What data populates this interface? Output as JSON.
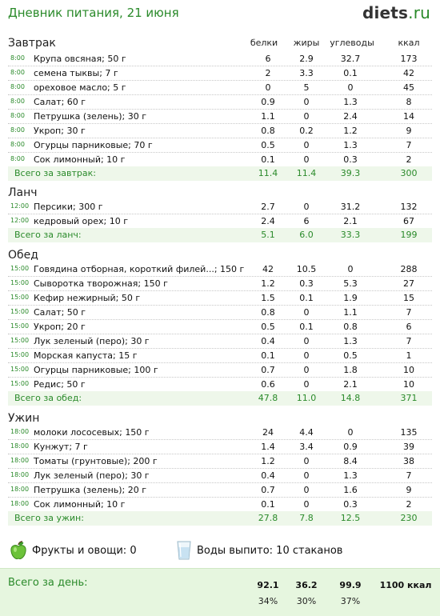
{
  "header": {
    "title": "Дневник питания, 21 июня",
    "logo_main": "diets",
    "logo_tld": ".ru"
  },
  "columns": {
    "protein": "белки",
    "fat": "жиры",
    "carbs": "углеводы",
    "kcal": "ккал"
  },
  "sections": [
    {
      "title": "Завтрак",
      "items": [
        {
          "time": "8:00",
          "name": "Крупа овсяная; 50 г",
          "b": "6",
          "f": "2.9",
          "c": "32.7",
          "k": "173"
        },
        {
          "time": "8:00",
          "name": "семена тыквы; 7 г",
          "b": "2",
          "f": "3.3",
          "c": "0.1",
          "k": "42"
        },
        {
          "time": "8:00",
          "name": "ореховое масло; 5 г",
          "b": "0",
          "f": "5",
          "c": "0",
          "k": "45"
        },
        {
          "time": "8:00",
          "name": "Салат; 60 г",
          "b": "0.9",
          "f": "0",
          "c": "1.3",
          "k": "8"
        },
        {
          "time": "8:00",
          "name": "Петрушка (зелень); 30 г",
          "b": "1.1",
          "f": "0",
          "c": "2.4",
          "k": "14"
        },
        {
          "time": "8:00",
          "name": "Укроп; 30 г",
          "b": "0.8",
          "f": "0.2",
          "c": "1.2",
          "k": "9"
        },
        {
          "time": "8:00",
          "name": "Огурцы парниковые; 70 г",
          "b": "0.5",
          "f": "0",
          "c": "1.3",
          "k": "7"
        },
        {
          "time": "8:00",
          "name": "Сок лимонный; 10 г",
          "b": "0.1",
          "f": "0",
          "c": "0.3",
          "k": "2"
        }
      ],
      "total": {
        "label": "Всего за завтрак:",
        "b": "11.4",
        "f": "11.4",
        "c": "39.3",
        "k": "300"
      }
    },
    {
      "title": "Ланч",
      "items": [
        {
          "time": "12:00",
          "name": "Персики; 300 г",
          "b": "2.7",
          "f": "0",
          "c": "31.2",
          "k": "132"
        },
        {
          "time": "12:00",
          "name": "кедровый орех; 10 г",
          "b": "2.4",
          "f": "6",
          "c": "2.1",
          "k": "67"
        }
      ],
      "total": {
        "label": "Всего за ланч:",
        "b": "5.1",
        "f": "6.0",
        "c": "33.3",
        "k": "199"
      }
    },
    {
      "title": "Обед",
      "items": [
        {
          "time": "15:00",
          "name": "Говядина отборная, короткий филей...; 150 г",
          "b": "42",
          "f": "10.5",
          "c": "0",
          "k": "288"
        },
        {
          "time": "15:00",
          "name": "Сыворотка творожная; 150 г",
          "b": "1.2",
          "f": "0.3",
          "c": "5.3",
          "k": "27"
        },
        {
          "time": "15:00",
          "name": "Кефир нежирный; 50 г",
          "b": "1.5",
          "f": "0.1",
          "c": "1.9",
          "k": "15"
        },
        {
          "time": "15:00",
          "name": "Салат; 50 г",
          "b": "0.8",
          "f": "0",
          "c": "1.1",
          "k": "7"
        },
        {
          "time": "15:00",
          "name": "Укроп; 20 г",
          "b": "0.5",
          "f": "0.1",
          "c": "0.8",
          "k": "6"
        },
        {
          "time": "15:00",
          "name": "Лук зеленый (перо); 30 г",
          "b": "0.4",
          "f": "0",
          "c": "1.3",
          "k": "7"
        },
        {
          "time": "15:00",
          "name": "Морская капуста; 15 г",
          "b": "0.1",
          "f": "0",
          "c": "0.5",
          "k": "1"
        },
        {
          "time": "15:00",
          "name": "Огурцы парниковые; 100 г",
          "b": "0.7",
          "f": "0",
          "c": "1.8",
          "k": "10"
        },
        {
          "time": "15:00",
          "name": "Редис; 50 г",
          "b": "0.6",
          "f": "0",
          "c": "2.1",
          "k": "10"
        }
      ],
      "total": {
        "label": "Всего за обед:",
        "b": "47.8",
        "f": "11.0",
        "c": "14.8",
        "k": "371"
      }
    },
    {
      "title": "Ужин",
      "items": [
        {
          "time": "18:00",
          "name": "молоки лососевых; 150 г",
          "b": "24",
          "f": "4.4",
          "c": "0",
          "k": "135"
        },
        {
          "time": "18:00",
          "name": "Кунжут; 7 г",
          "b": "1.4",
          "f": "3.4",
          "c": "0.9",
          "k": "39"
        },
        {
          "time": "18:00",
          "name": "Томаты (грунтовые); 200 г",
          "b": "1.2",
          "f": "0",
          "c": "8.4",
          "k": "38"
        },
        {
          "time": "18:00",
          "name": "Лук зеленый (перо); 30 г",
          "b": "0.4",
          "f": "0",
          "c": "1.3",
          "k": "7"
        },
        {
          "time": "18:00",
          "name": "Петрушка (зелень); 20 г",
          "b": "0.7",
          "f": "0",
          "c": "1.6",
          "k": "9"
        },
        {
          "time": "18:00",
          "name": "Сок лимонный; 10 г",
          "b": "0.1",
          "f": "0",
          "c": "0.3",
          "k": "2"
        }
      ],
      "total": {
        "label": "Всего за ужин:",
        "b": "27.8",
        "f": "7.8",
        "c": "12.5",
        "k": "230"
      }
    }
  ],
  "extras": {
    "fruits_label": "Фрукты и овощи: 0",
    "water_label": "Воды выпито: 10 стаканов",
    "fruits_icon": "green-apple-icon",
    "water_icon": "glass-of-water-icon"
  },
  "day_total": {
    "label": "Всего за день:",
    "b": "92.1",
    "f": "36.2",
    "c": "99.9",
    "k": "1100 ккал",
    "b_pct": "34%",
    "f_pct": "30%",
    "c_pct": "37%"
  },
  "colors": {
    "accent": "#2a8a2a",
    "total_bg": "#eef7ea",
    "day_bg": "#e6f6df"
  }
}
